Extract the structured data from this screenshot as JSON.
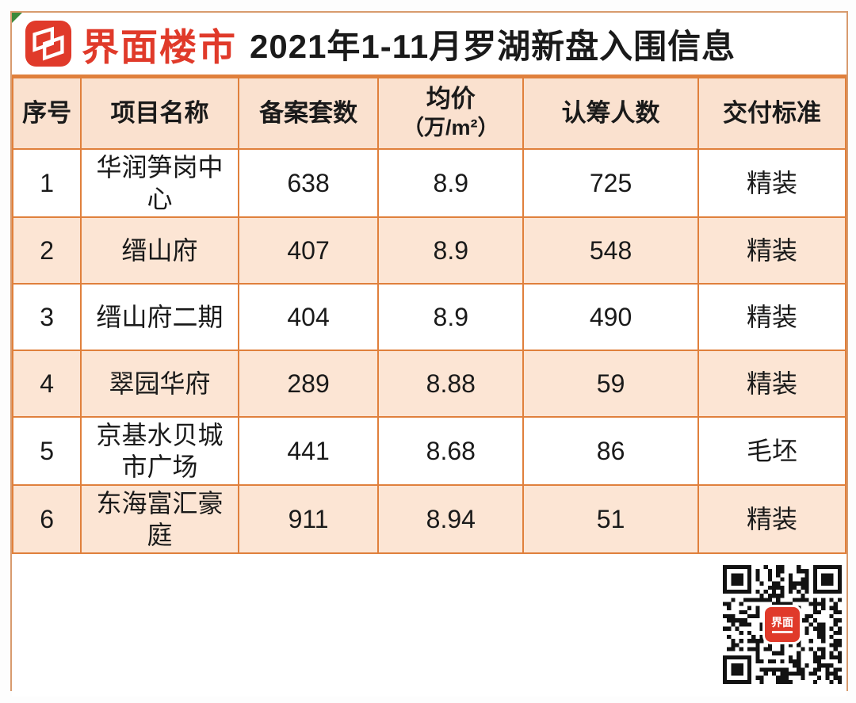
{
  "header": {
    "brand": "界面楼市",
    "title": "2021年1-11月罗湖新盘入围信息"
  },
  "chart_data": {
    "type": "table",
    "title": "2021年1-11月罗湖新盘入围信息",
    "columns": [
      {
        "label": "序号",
        "sub": ""
      },
      {
        "label": "项目名称",
        "sub": ""
      },
      {
        "label": "备案套数",
        "sub": ""
      },
      {
        "label": "均价",
        "sub": "（万/m²）"
      },
      {
        "label": "认筹人数",
        "sub": ""
      },
      {
        "label": "交付标准",
        "sub": ""
      }
    ],
    "col_widths_pct": [
      8.2,
      18.9,
      16.8,
      17.4,
      21.0,
      17.7
    ],
    "rows": [
      [
        "1",
        "华润笋岗中心",
        "638",
        "8.9",
        "725",
        "精装"
      ],
      [
        "2",
        "缙山府",
        "407",
        "8.9",
        "548",
        "精装"
      ],
      [
        "3",
        "缙山府二期",
        "404",
        "8.9",
        "490",
        "精装"
      ],
      [
        "4",
        "翠园华府",
        "289",
        "8.88",
        "59",
        "精装"
      ],
      [
        "5",
        "京基水贝城市广场",
        "441",
        "8.68",
        "86",
        "毛坯"
      ],
      [
        "6",
        "东海富汇豪庭",
        "911",
        "8.94",
        "51",
        "精装"
      ]
    ],
    "zebra_striping": true,
    "striped_row_indices": [
      1,
      3,
      5
    ]
  },
  "qr": {
    "center_label": "界面"
  },
  "colors": {
    "accent_red": "#e03a2a",
    "grid_orange": "#e0803c",
    "header_bg": "#fae1cf",
    "stripe_bg": "#fce5d4",
    "frame_border": "#d89b6e",
    "marker_green": "#3c8a3c"
  }
}
